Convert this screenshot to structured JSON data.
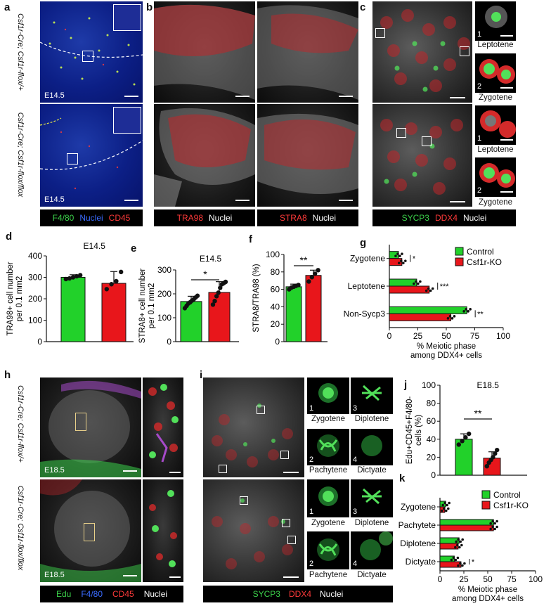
{
  "panel_letters": {
    "a": "a",
    "b": "b",
    "c": "c",
    "d": "d",
    "e": "e",
    "f": "f",
    "g": "g",
    "h": "h",
    "i": "i",
    "j": "j",
    "k": "k"
  },
  "genotypes": {
    "flox_plus": "Csf1r-Cre; Csf1r-flox/+",
    "flox_flox": "Csf1r-Cre; Csf1r-flox/flox"
  },
  "ages": {
    "e14": "E14.5",
    "e18": "E18.5"
  },
  "stage_labels": {
    "leptotene": "Leptotene",
    "zygotene": "Zygotene",
    "pachytene": "Pachytene",
    "diplotene": "Diplotene",
    "dictyate": "Dictyate",
    "n1": "1",
    "n2": "2",
    "n3": "3",
    "n4": "4"
  },
  "legends": {
    "a": {
      "f480": "F4/80",
      "nuclei": "Nuclei",
      "cd45": "CD45"
    },
    "b1": {
      "tra98": "TRA98",
      "nuclei": "Nuclei"
    },
    "b2": {
      "stra8": "STRA8",
      "nuclei": "Nuclei"
    },
    "c": {
      "sycp3": "SYCP3",
      "ddx4": "DDX4",
      "nuclei": "Nuclei"
    },
    "h": {
      "edu": "Edu",
      "f480": "F4/80",
      "cd45": "CD45",
      "nuclei": "Nuclei"
    },
    "i": {
      "sycp3": "SYCP3",
      "ddx4": "DDX4",
      "nuclei": "Nuclei"
    }
  },
  "colors": {
    "control": "#22d12a",
    "ko": "#e8161b",
    "f480": "#3bd04a",
    "nuclei_blue": "#3a6bff",
    "cd45": "#ff2a2a",
    "edu": "#3bd04a"
  },
  "chart_data": [
    {
      "panel": "d",
      "type": "bar",
      "title": "E14.5",
      "ylabel": "TRA98+ cell number per 0.1 mm2",
      "ylim": [
        0,
        400
      ],
      "yticks": [
        0,
        100,
        200,
        300,
        400
      ],
      "series": [
        {
          "values": [
            300,
            272
          ]
        }
      ],
      "errors": [
        12,
        55
      ],
      "points": [
        [
          292,
          295,
          300,
          305,
          310
        ],
        [
          245,
          268,
          282,
          325
        ]
      ]
    },
    {
      "panel": "e",
      "type": "bar",
      "title": "E14.5",
      "ylabel": "STRA8+ cell number per 0.1 mm2",
      "ylim": [
        0,
        300
      ],
      "yticks": [
        0,
        100,
        200,
        300
      ],
      "series": [
        {
          "values": [
            168,
            206
          ]
        }
      ],
      "errors": [
        22,
        45
      ],
      "points": [
        [
          140,
          150,
          160,
          165,
          172,
          178,
          185,
          192
        ],
        [
          155,
          170,
          190,
          205,
          225,
          240,
          245,
          250
        ]
      ],
      "significance": "*"
    },
    {
      "panel": "f",
      "type": "bar",
      "title": "",
      "ylabel": "STRA8/TRA98 (%)",
      "ylim": [
        0,
        100
      ],
      "yticks": [
        0,
        20,
        40,
        60,
        80,
        100
      ],
      "series": [
        {
          "values": [
            63,
            76
          ]
        }
      ],
      "errors": [
        3,
        6
      ],
      "points": [
        [
          60,
          62,
          63,
          64,
          65
        ],
        [
          69,
          74,
          78,
          82
        ]
      ],
      "significance": "**"
    },
    {
      "panel": "g",
      "type": "bar",
      "orientation": "horizontal",
      "categories": [
        "Zygotene",
        "Leptotene",
        "Non-Sycp3"
      ],
      "series": [
        {
          "name": "Control",
          "values": [
            8,
            24,
            68
          ]
        },
        {
          "name": "Csf1r-KO",
          "values": [
            11,
            35,
            54
          ]
        }
      ],
      "xlabel": "% Meiotic phase among DDX4+ cells",
      "xlim": [
        0,
        100
      ],
      "xticks": [
        0,
        25,
        50,
        75,
        100
      ],
      "significance": [
        "*",
        "***",
        "**"
      ]
    },
    {
      "panel": "j",
      "type": "bar",
      "title": "E18.5",
      "ylabel": "Edu+CD45+F4/80- cells (%)",
      "ylim": [
        0,
        100
      ],
      "yticks": [
        0,
        20,
        40,
        60,
        80,
        100
      ],
      "series": [
        {
          "values": [
            40,
            19
          ]
        }
      ],
      "errors": [
        6,
        7
      ],
      "points": [
        [
          34,
          38,
          42,
          46
        ],
        [
          10,
          14,
          17,
          20,
          24,
          28
        ]
      ],
      "significance": "**"
    },
    {
      "panel": "k",
      "type": "bar",
      "orientation": "horizontal",
      "categories": [
        "Zygotene",
        "Pachytete",
        "Diplotene",
        "Dictyate"
      ],
      "series": [
        {
          "name": "Control",
          "values": [
            6,
            56,
            20,
            15
          ]
        },
        {
          "name": "Csf1r-KO",
          "values": [
            5,
            56,
            19,
            22
          ]
        }
      ],
      "xlabel": "% Meiotic phase among DDX4+ cells",
      "xlim": [
        0,
        100
      ],
      "xticks": [
        0,
        25,
        50,
        75,
        100
      ],
      "significance": [
        "",
        "",
        "",
        "*"
      ]
    }
  ]
}
